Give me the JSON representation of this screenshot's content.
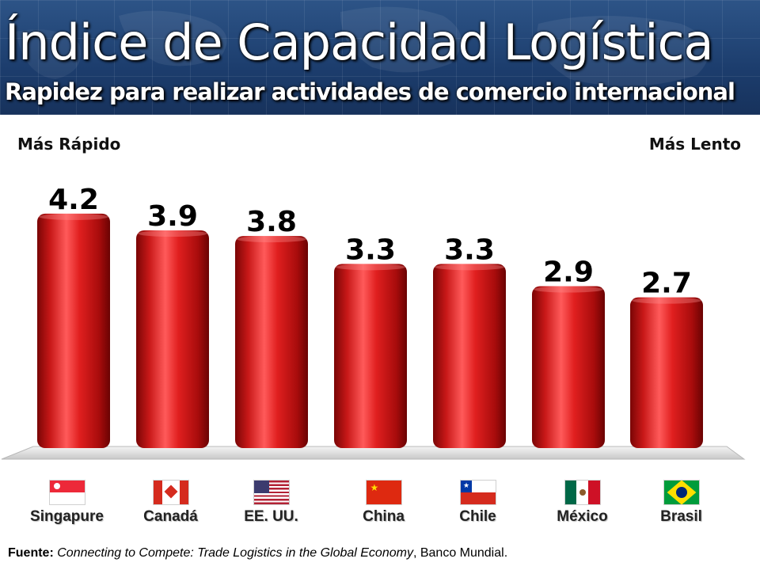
{
  "header": {
    "title": "Índice de Capacidad Logística",
    "subtitle": "Rapidez para realizar actividades de comercio internacional"
  },
  "notes": {
    "left": "Más Rápido",
    "right": "Más Lento"
  },
  "chart_data": {
    "type": "bar",
    "title": "Índice de Capacidad Logística",
    "subtitle": "Rapidez para realizar actividades de comercio internacional",
    "categories": [
      "Singapure",
      "Canadá",
      "EE. UU.",
      "China",
      "Chile",
      "México",
      "Brasil"
    ],
    "values": [
      4.2,
      3.9,
      3.8,
      3.3,
      3.3,
      2.9,
      2.7
    ],
    "value_labels": [
      "4.2",
      "3.9",
      "3.8",
      "3.3",
      "3.3",
      "2.9",
      "2.7"
    ],
    "bar_color": "#d21f1f",
    "grid": false,
    "legend": "none",
    "ylim": [
      0,
      4.2
    ]
  },
  "source": {
    "label": "Fuente:",
    "title": "Connecting to Compete: Trade Logistics in the Global Economy",
    "publisher": ", Banco Mundial."
  },
  "flags": [
    "singapore-flag-icon",
    "canada-flag-icon",
    "usa-flag-icon",
    "china-flag-icon",
    "chile-flag-icon",
    "mexico-flag-icon",
    "brazil-flag-icon"
  ]
}
